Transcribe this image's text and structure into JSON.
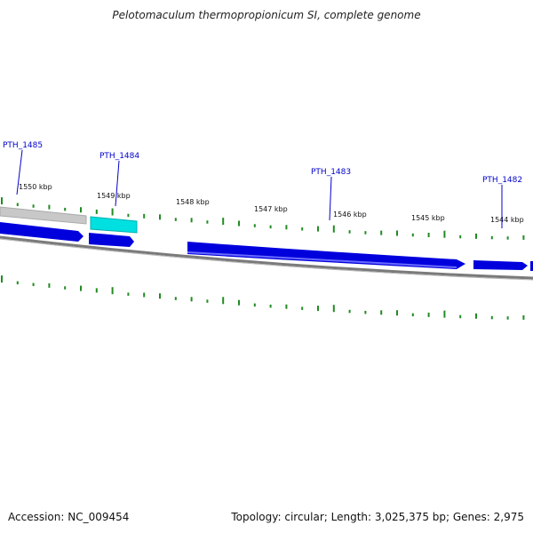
{
  "title": "Pelotomaculum thermopropionicum SI, complete genome",
  "footer": {
    "accession": "Accession: NC_009454",
    "summary": "Topology: circular; Length: 3,025,375 bp; Genes: 2,975"
  },
  "scale": {
    "ticks": [
      "1550 kbp",
      "1549 kbp",
      "1548 kbp",
      "1547 kbp",
      "1546 kbp",
      "1545 kbp",
      "1544 kbp"
    ]
  },
  "genes": [
    {
      "name": "PTH_1485"
    },
    {
      "name": "PTH_1484",
      "state": "highlighted"
    },
    {
      "name": "PTH_1483"
    },
    {
      "name": "PTH_1482"
    }
  ],
  "colors": {
    "gene": "#0000dd",
    "highlight": "#00e0e0",
    "backbone": "#808080",
    "gc_plot": "#228b22",
    "label": "#0000cc"
  }
}
